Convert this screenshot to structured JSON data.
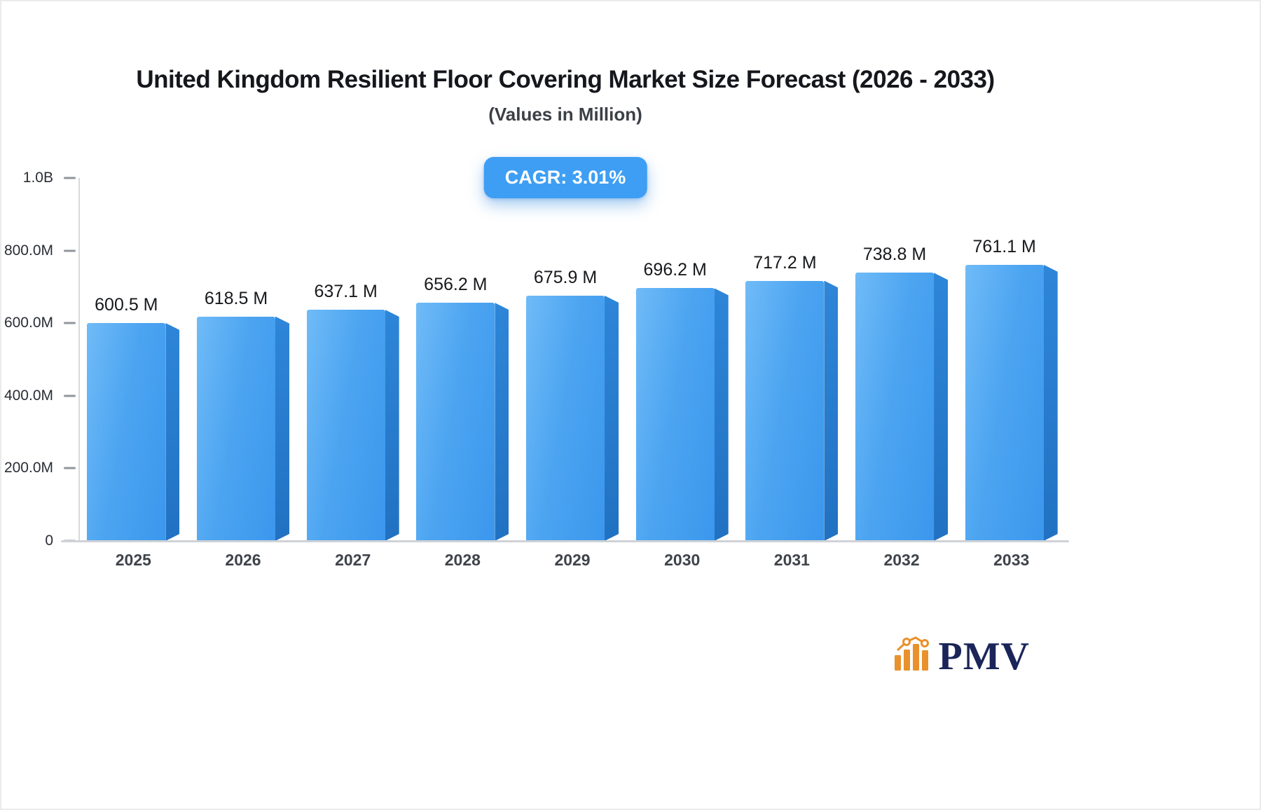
{
  "header": {
    "title": "United Kingdom Resilient Floor Covering Market Size Forecast (2026 - 2033)",
    "subtitle": "(Values in Million)"
  },
  "cagr_badge": "CAGR: 3.01%",
  "chart_data": {
    "type": "bar",
    "title": "United Kingdom Resilient Floor Covering Market Size Forecast (2026 - 2033)",
    "subtitle": "(Values in Million)",
    "cagr_percent": 3.01,
    "unit": "Million",
    "categories": [
      "2025",
      "2026",
      "2027",
      "2028",
      "2029",
      "2030",
      "2031",
      "2032",
      "2033"
    ],
    "values": [
      600.5,
      618.5,
      637.1,
      656.2,
      675.9,
      696.2,
      717.2,
      738.8,
      761.1
    ],
    "value_labels": [
      "600.5 M",
      "618.5 M",
      "637.1 M",
      "656.2 M",
      "675.9 M",
      "696.2 M",
      "717.2 M",
      "738.8 M",
      "761.1 M"
    ],
    "ylim": [
      0,
      1000
    ],
    "y_ticks": [
      {
        "label": "1.0B",
        "value": 1000
      },
      {
        "label": "800.0M",
        "value": 800
      },
      {
        "label": "600.0M",
        "value": 600
      },
      {
        "label": "400.0M",
        "value": 400
      },
      {
        "label": "200.0M",
        "value": 200
      },
      {
        "label": "0",
        "value": 0
      }
    ],
    "grid": false,
    "legend": false,
    "colors": {
      "bar_front_light": "#70bbf7",
      "bar_front": "#3b97ed",
      "bar_side": "#2171c2",
      "badge_bg": "#3e9ef4",
      "axis": "#cfd2d6",
      "logo_orange": "#e8912d",
      "logo_navy": "#1b2559"
    }
  },
  "footer": {
    "brand": "PMV"
  }
}
